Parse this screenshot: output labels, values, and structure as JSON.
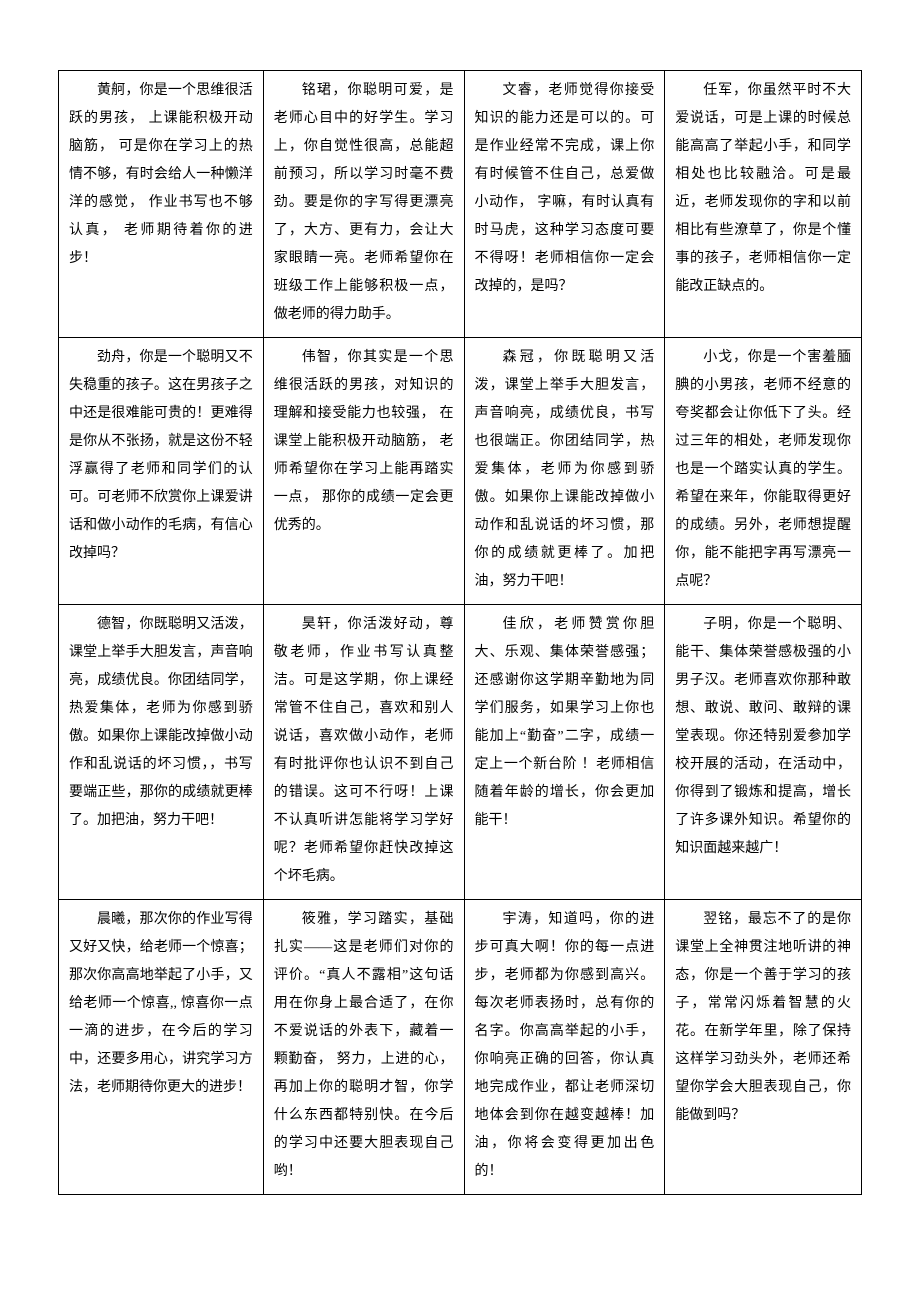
{
  "rows": [
    {
      "c1": "黄舸，你是一个思维很活跃的男孩， 上课能积极开动脑筋， 可是你在学习上的热情不够，有时会给人一种懒洋洋的感觉， 作业书写也不够认真， 老师期待着你的进步！",
      "c2": "铭珺，你聪明可爱，是老师心目中的好学生。学习上，你自觉性很高，总能超前预习，所以学习时毫不费劲。要是你的字写得更漂亮了，大方、更有力，会让大家眼睛一亮。老师希望你在班级工作上能够积极一点，做老师的得力助手。",
      "c3": "文睿，老师觉得你接受知识的能力还是可以的。可是作业经常不完成，课上你有时候管不住自己，总爱做小动作， 字嘛，有时认真有时马虎，这种学习态度可要不得呀！老师相信你一定会改掉的，是吗？",
      "c4": "任军，你虽然平时不大爱说话，可是上课的时候总能高高了举起小手，和同学相处也比较融洽。可是最近，老师发现你的字和以前相比有些潦草了，你是个懂事的孩子，老师相信你一定能改正缺点的。"
    },
    {
      "c1": "劲舟，你是一个聪明又不失稳重的孩子。这在男孩子之中还是很难能可贵的！更难得是你从不张扬，就是这份不轻浮赢得了老师和同学们的认可。可老师不欣赏你上课爱讲话和做小动作的毛病，有信心改掉吗？",
      "c2": "伟智，你其实是一个思维很活跃的男孩，对知识的理解和接受能力也较强， 在课堂上能积极开动脑筋， 老师希望你在学习上能再踏实一点， 那你的成绩一定会更优秀的。",
      "c3": "森冠，你既聪明又活泼，课堂上举手大胆发言，声音响亮，成绩优良，书写也很端正。你团结同学，热爱集体，老师为你感到骄傲。如果你上课能改掉做小动作和乱说话的坏习惯，那你的成绩就更棒了。加把油，努力干吧！",
      "c4": "小戈，你是一个害羞腼腆的小男孩，老师不经意的夸奖都会让你低下了头。经过三年的相处，老师发现你也是一个踏实认真的学生。希望在来年，你能取得更好的成绩。另外，老师想提醒你，能不能把字再写漂亮一点呢？"
    },
    {
      "c1": "德智，你既聪明又活泼，课堂上举手大胆发言，声音响亮，成绩优良。你团结同学，热爱集体，老师为你感到骄傲。如果你上课能改掉做小动作和乱说话的坏习惯，，书写要端正些，那你的成绩就更棒了。加把油，努力干吧！",
      "c2": "昊轩，你活泼好动，尊敬老师，作业书写认真整洁。可是这学期，你上课经常管不住自己，喜欢和别人说话，喜欢做小动作，老师有时批评你也认识不到自己的错误。这可不行呀！上课不认真听讲怎能将学习学好呢？老师希望你赶快改掉这个坏毛病。",
      "c3": "佳欣，老师赞赏你胆大、乐观、集体荣誉感强；还感谢你这学期辛勤地为同学们服务，如果学习上你也能加上“勤奋”二字，成绩一定上一个新台阶 ！老师相信随着年龄的增长，你会更加能干！",
      "c4": "子明，你是一个聪明、能干、集体荣誉感极强的小男子汉。老师喜欢你那种敢想、敢说、敢问、敢辩的课堂表现。你还特别爱参加学校开展的活动，在活动中，你得到了锻炼和提高，增长了许多课外知识。希望你的知识面越来越广！"
    },
    {
      "c1": "晨曦，那次你的作业写得又好又快，给老师一个惊喜；那次你高高地举起了小手，又给老师一个惊喜,, 惊喜你一点一滴的进步，在今后的学习中，还要多用心，讲究学习方法，老师期待你更大的进步！",
      "c2": "筱雅，学习踏实，基础扎实——这是老师们对你的评价。“真人不露相”这句话用在你身上最合适了，在你不爱说话的外表下，藏着一颗勤奋， 努力，上进的心，再加上你的聪明才智，你学什么东西都特别快。在今后的学习中还要大胆表现自己哟！",
      "c3": "宇涛，知道吗，你的进步可真大啊！你的每一点进步，老师都为你感到高兴。每次老师表扬时，总有你的名字。你高高举起的小手，你响亮正确的回答，你认真地完成作业，都让老师深切地体会到你在越变越棒！加油，你将会变得更加出色的！",
      "c4": "翌铭，最忘不了的是你课堂上全神贯注地听讲的神态，你是一个善于学习的孩子，常常闪烁着智慧的火花。在新学年里，除了保持这样学习劲头外，老师还希望你学会大胆表现自己，你能做到吗？"
    }
  ]
}
